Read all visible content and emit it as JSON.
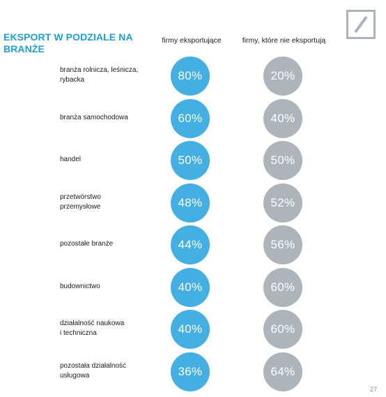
{
  "logo": {
    "icon": "deutsche-bank-slash-logo",
    "color": "#aab4bc"
  },
  "title": "EKSPORT W PODZIALE NA BRANŻE",
  "columns": {
    "export": "firmy eksportujące",
    "nonexport": "firmy, które nie eksportują"
  },
  "colors": {
    "title": "#1ea0d6",
    "export": "#44afe3",
    "nonexport": "#adb5bb"
  },
  "rows": [
    {
      "label": "branża rolnicza, leśnicza,\nrybacka",
      "export": "80%",
      "nonexport": "20%"
    },
    {
      "label": "branża samochodowa",
      "export": "60%",
      "nonexport": "40%"
    },
    {
      "label": "handel",
      "export": "50%",
      "nonexport": "50%"
    },
    {
      "label": "przetwórstwo\nprzemysłowe",
      "export": "48%",
      "nonexport": "52%"
    },
    {
      "label": "pozostałe branże",
      "export": "44%",
      "nonexport": "56%"
    },
    {
      "label": "budownictwo",
      "export": "40%",
      "nonexport": "60%"
    },
    {
      "label": "działalność naukowa\ni techniczna",
      "export": "40%",
      "nonexport": "60%"
    },
    {
      "label": "pozostała działalność\nusługowa",
      "export": "36%",
      "nonexport": "64%"
    }
  ],
  "page_number": "27"
}
